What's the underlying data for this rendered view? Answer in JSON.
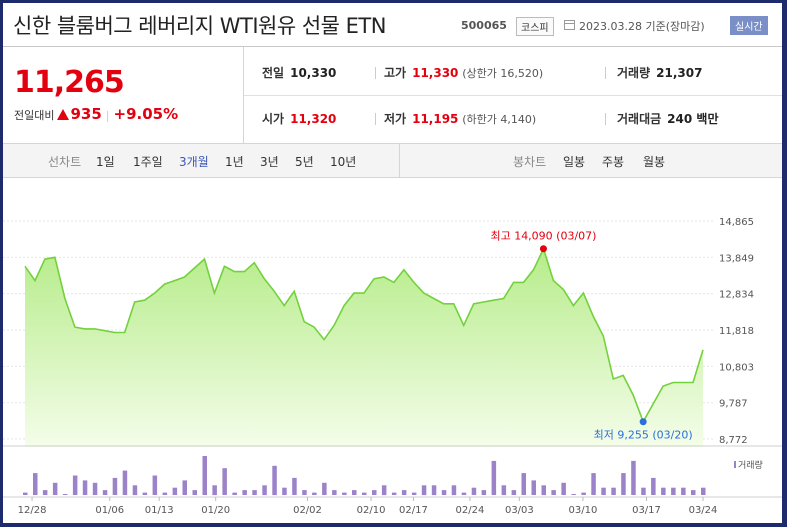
{
  "header": {
    "title": "신한 블룸버그 레버리지 WTI원유 선물 ETN",
    "code": "500065",
    "market": "코스피",
    "date": "2023.03.28 기준(장마감)",
    "realtime_label": "실시간"
  },
  "price": {
    "current": "11,265",
    "change_label": "전일대비",
    "change": "935",
    "change_pct": "+9.05%"
  },
  "stats": {
    "prev_close_label": "전일",
    "prev_close": "10,330",
    "high_label": "고가",
    "high": "11,330",
    "upper_limit": "(상한가 16,520)",
    "volume_label": "거래량",
    "volume": "21,307",
    "open_label": "시가",
    "open": "11,320",
    "low_label": "저가",
    "low": "11,195",
    "lower_limit": "(하한가 4,140)",
    "amount_label": "거래대금",
    "amount": "240 백만"
  },
  "period_bar": {
    "line_chart_label": "선차트",
    "periods": [
      "1일",
      "1주일",
      "3개월",
      "1년",
      "3년",
      "5년",
      "10년"
    ],
    "selected": "3개월",
    "candle_chart_label": "봉차트",
    "candles": [
      "일봉",
      "주봉",
      "월봉"
    ]
  },
  "chart_data": {
    "type": "area",
    "y_ticks": [
      "14,865",
      "13,849",
      "12,834",
      "11,818",
      "10,803",
      "9,787",
      "8,772"
    ],
    "ylim": [
      8772,
      14865
    ],
    "x_ticks": [
      "12/28",
      "01/06",
      "01/13",
      "01/20",
      "02/02",
      "02/10",
      "02/17",
      "02/24",
      "03/03",
      "03/10",
      "03/17",
      "03/24"
    ],
    "high_annotation": "최고 14,090 (03/07)",
    "low_annotation": "최저 9,255 (03/20)",
    "high_value": 14090,
    "low_value": 9255,
    "volume_legend": "거래량",
    "prices": [
      13600,
      13200,
      13800,
      13850,
      12700,
      11900,
      11850,
      11850,
      11800,
      11750,
      11750,
      12600,
      12650,
      12850,
      13100,
      13200,
      13300,
      13550,
      13800,
      12850,
      13600,
      13450,
      13450,
      13700,
      13250,
      12900,
      12500,
      12900,
      12050,
      11900,
      11550,
      11950,
      12500,
      12850,
      12850,
      13250,
      13300,
      13150,
      13500,
      13150,
      12850,
      12700,
      12550,
      12550,
      11950,
      12550,
      12600,
      12650,
      12700,
      13150,
      13150,
      13500,
      14090,
      13200,
      12950,
      12500,
      12850,
      12200,
      11650,
      10450,
      10550,
      10000,
      9255,
      9750,
      10250,
      10350,
      10350,
      10350,
      11265
    ],
    "volumes": [
      1,
      9,
      2,
      5,
      0,
      8,
      6,
      5,
      2,
      7,
      10,
      4,
      1,
      8,
      1,
      3,
      6,
      2,
      16,
      4,
      11,
      1,
      2,
      2,
      4,
      12,
      3,
      7,
      2,
      1,
      5,
      2,
      1,
      2,
      1,
      2,
      4,
      1,
      2,
      1,
      4,
      4,
      2,
      4,
      1,
      3,
      2,
      14,
      4,
      2,
      9,
      6,
      4,
      2,
      5,
      0,
      1,
      9,
      3,
      3,
      9,
      14,
      3,
      7,
      3,
      3,
      3,
      2,
      3
    ]
  }
}
